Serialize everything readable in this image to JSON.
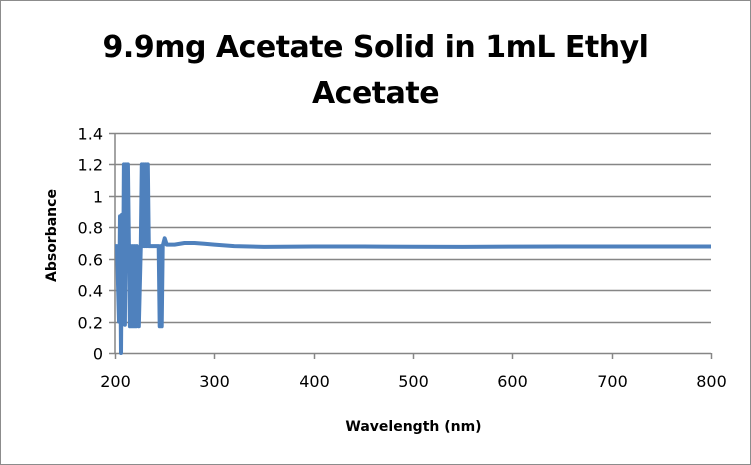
{
  "chart_data": {
    "type": "line",
    "title": "9.9mg Acetate Solid in 1mL Ethyl Acetate",
    "title_lines": [
      "9.9mg Acetate Solid in 1mL Ethyl",
      "Acetate"
    ],
    "xlabel": "Wavelength (nm)",
    "ylabel": "Absorbance",
    "xlim": [
      200,
      800
    ],
    "ylim": [
      0,
      1.4
    ],
    "x_ticks": [
      "200",
      "300",
      "400",
      "500",
      "600",
      "700",
      "800"
    ],
    "y_ticks": [
      "0",
      "0.2",
      "0.4",
      "0.6",
      "0.8",
      "1",
      "1.2",
      "1.4"
    ],
    "grid": "horizontal",
    "legend": "none",
    "series": [
      {
        "name": "Absorbance",
        "color": "#4f81bd",
        "x": [
          200,
          202,
          204,
          205,
          206,
          207,
          208,
          209,
          210,
          211,
          212,
          213,
          214,
          215,
          216,
          217,
          218,
          219,
          220,
          221,
          222,
          224,
          226,
          227,
          228,
          229,
          230,
          231,
          232,
          233,
          234,
          236,
          240,
          244,
          245,
          246,
          247,
          248,
          250,
          252,
          256,
          260,
          270,
          280,
          290,
          300,
          320,
          350,
          400,
          450,
          500,
          550,
          600,
          650,
          700,
          750,
          800
        ],
        "y": [
          0.68,
          0.68,
          0.2,
          0.87,
          0.0,
          0.88,
          0.2,
          1.2,
          0.18,
          1.2,
          0.68,
          1.2,
          0.68,
          0.17,
          0.68,
          0.17,
          0.68,
          0.17,
          0.68,
          0.17,
          0.68,
          0.17,
          0.68,
          1.2,
          0.68,
          1.2,
          0.68,
          1.2,
          0.68,
          1.2,
          0.68,
          0.68,
          0.68,
          0.68,
          0.17,
          0.68,
          0.17,
          0.68,
          0.73,
          0.69,
          0.69,
          0.69,
          0.7,
          0.7,
          0.695,
          0.69,
          0.68,
          0.675,
          0.678,
          0.678,
          0.676,
          0.675,
          0.677,
          0.678,
          0.678,
          0.678,
          0.678
        ]
      }
    ]
  },
  "ui": {
    "line_color": "#4f81bd",
    "grid_color": "#868686"
  }
}
